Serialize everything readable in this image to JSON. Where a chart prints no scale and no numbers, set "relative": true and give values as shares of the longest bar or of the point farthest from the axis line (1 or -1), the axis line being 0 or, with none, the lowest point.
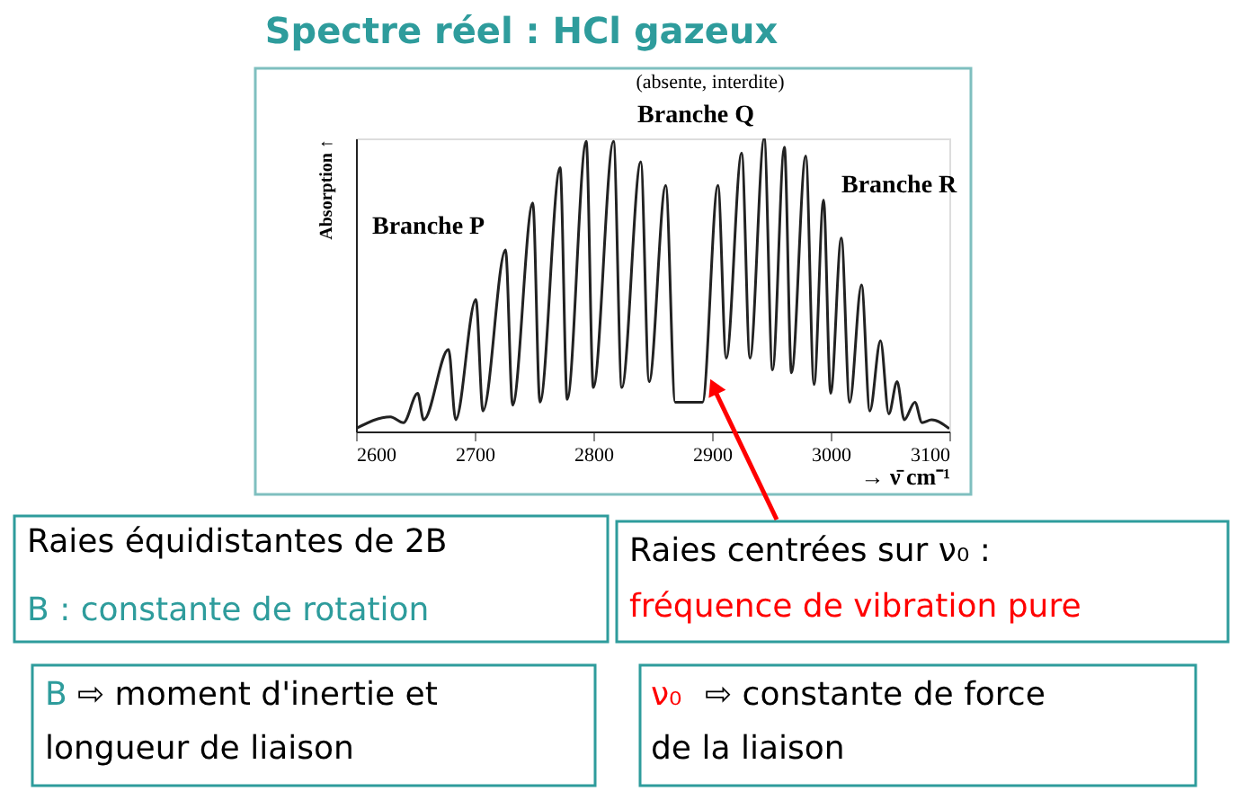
{
  "chart_data": {
    "type": "line",
    "title": "Spectre réel : HCl gazeux",
    "xlabel": "→ ν̄ cm⁻¹",
    "ylabel": "Absorption ↑",
    "relative": true,
    "color": "#222222",
    "grid": false,
    "xlim": [
      2600,
      3100
    ],
    "xticks": [
      2600,
      2700,
      2800,
      2900,
      3000,
      3100
    ],
    "x": [
      2600,
      2629,
      2640,
      2652,
      2657,
      2678,
      2684,
      2701,
      2707,
      2726,
      2732,
      2749,
      2755,
      2772,
      2778,
      2794,
      2800,
      2817,
      2824,
      2840,
      2847,
      2861,
      2869,
      2892,
      2905,
      2912,
      2925,
      2932,
      2944,
      2951,
      2961,
      2967,
      2979,
      2986,
      2994,
      3000,
      3009,
      3016,
      3026,
      3033,
      3042,
      3049,
      3056,
      3062,
      3071,
      3077,
      3085,
      3100
    ],
    "values": [
      0.01,
      0.05,
      0.03,
      0.13,
      0.04,
      0.28,
      0.04,
      0.45,
      0.07,
      0.62,
      0.09,
      0.78,
      0.1,
      0.9,
      0.11,
      0.99,
      0.15,
      0.99,
      0.15,
      0.92,
      0.17,
      0.84,
      0.1,
      0.1,
      0.84,
      0.25,
      0.95,
      0.25,
      1.0,
      0.21,
      0.97,
      0.2,
      0.94,
      0.16,
      0.79,
      0.13,
      0.66,
      0.1,
      0.5,
      0.07,
      0.31,
      0.06,
      0.17,
      0.04,
      0.1,
      0.03,
      0.04,
      0.01
    ],
    "annotations": [
      "Branche P",
      "(absente, interdite)",
      "Branche Q",
      "Branche R",
      "Raies équidistantes de 2B",
      "B : constante de rotation",
      "Raies centrées sur ν₀ :",
      "fréquence de vibration pure",
      "B ⇨ moment d'inertie et",
      "longueur de liaison",
      "ν₀ ⇨ constante de force",
      "de la liaison"
    ]
  }
}
